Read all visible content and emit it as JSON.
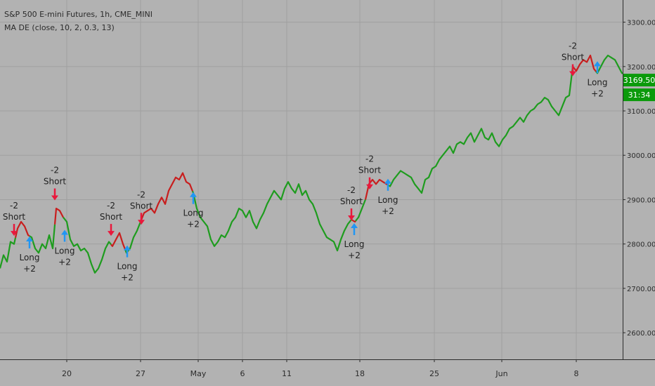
{
  "header": {
    "symbol_title": "S&P 500 E-mini Futures, 1h, CME_MINI",
    "indicator_label": "MA DE (close, 10, 2, 0.3, 13)"
  },
  "price_axis": {
    "ticks": [
      "3300.00",
      "3200.00",
      "3100.00",
      "3000.00",
      "2900.00",
      "2800.00",
      "2700.00",
      "2600.00"
    ],
    "last_price": "3169.50",
    "countdown": "31:34"
  },
  "time_axis": {
    "ticks": [
      "20",
      "27",
      "May",
      "6",
      "11",
      "18",
      "25",
      "Jun",
      "8"
    ]
  },
  "colors": {
    "background": "#b2b2b2",
    "grid": "#a0a0a0",
    "long_trend": "#1e9c1e",
    "short_trend": "#c81e1e",
    "long_arrow": "#2196f3",
    "short_arrow": "#e8183c",
    "label_badge": "#0b9a0b",
    "axis_text": "#2b2b2b"
  },
  "chart_data": {
    "type": "line",
    "ylim": [
      2540,
      3350
    ],
    "y_ticks": [
      3300,
      3200,
      3100,
      3000,
      2900,
      2800,
      2700,
      2600
    ],
    "x_ticks": [
      {
        "label": "20",
        "x": 95
      },
      {
        "label": "27",
        "x": 200
      },
      {
        "label": "May",
        "x": 282
      },
      {
        "label": "6",
        "x": 345
      },
      {
        "label": "11",
        "x": 408
      },
      {
        "label": "18",
        "x": 512
      },
      {
        "label": "25",
        "x": 618
      },
      {
        "label": "Jun",
        "x": 714
      },
      {
        "label": "8",
        "x": 820
      }
    ],
    "xlim": [
      0,
      886
    ],
    "series": [
      {
        "name": "price",
        "points": [
          [
            0,
            2745
          ],
          [
            5,
            2775
          ],
          [
            10,
            2760
          ],
          [
            15,
            2805
          ],
          [
            20,
            2800
          ],
          [
            25,
            2835
          ],
          [
            30,
            2850
          ],
          [
            35,
            2840
          ],
          [
            40,
            2820
          ],
          [
            45,
            2815
          ],
          [
            50,
            2790
          ],
          [
            55,
            2780
          ],
          [
            60,
            2800
          ],
          [
            65,
            2790
          ],
          [
            70,
            2820
          ],
          [
            75,
            2790
          ],
          [
            80,
            2880
          ],
          [
            85,
            2875
          ],
          [
            90,
            2860
          ],
          [
            95,
            2850
          ],
          [
            100,
            2810
          ],
          [
            105,
            2795
          ],
          [
            110,
            2800
          ],
          [
            115,
            2785
          ],
          [
            120,
            2790
          ],
          [
            125,
            2780
          ],
          [
            130,
            2755
          ],
          [
            135,
            2735
          ],
          [
            140,
            2745
          ],
          [
            145,
            2765
          ],
          [
            150,
            2790
          ],
          [
            155,
            2805
          ],
          [
            160,
            2795
          ],
          [
            165,
            2810
          ],
          [
            170,
            2825
          ],
          [
            175,
            2800
          ],
          [
            180,
            2780
          ],
          [
            185,
            2790
          ],
          [
            190,
            2815
          ],
          [
            195,
            2830
          ],
          [
            200,
            2850
          ],
          [
            205,
            2870
          ],
          [
            210,
            2875
          ],
          [
            215,
            2880
          ],
          [
            220,
            2870
          ],
          [
            225,
            2890
          ],
          [
            230,
            2905
          ],
          [
            235,
            2890
          ],
          [
            240,
            2920
          ],
          [
            245,
            2935
          ],
          [
            250,
            2950
          ],
          [
            255,
            2945
          ],
          [
            260,
            2960
          ],
          [
            265,
            2940
          ],
          [
            270,
            2935
          ],
          [
            275,
            2915
          ],
          [
            280,
            2880
          ],
          [
            285,
            2860
          ],
          [
            290,
            2850
          ],
          [
            295,
            2840
          ],
          [
            300,
            2810
          ],
          [
            305,
            2795
          ],
          [
            310,
            2805
          ],
          [
            315,
            2820
          ],
          [
            320,
            2815
          ],
          [
            325,
            2830
          ],
          [
            330,
            2850
          ],
          [
            335,
            2860
          ],
          [
            340,
            2880
          ],
          [
            345,
            2875
          ],
          [
            350,
            2860
          ],
          [
            355,
            2875
          ],
          [
            360,
            2850
          ],
          [
            365,
            2835
          ],
          [
            370,
            2855
          ],
          [
            375,
            2870
          ],
          [
            380,
            2890
          ],
          [
            385,
            2905
          ],
          [
            390,
            2920
          ],
          [
            395,
            2910
          ],
          [
            400,
            2900
          ],
          [
            405,
            2925
          ],
          [
            410,
            2940
          ],
          [
            415,
            2925
          ],
          [
            420,
            2915
          ],
          [
            425,
            2935
          ],
          [
            430,
            2910
          ],
          [
            435,
            2920
          ],
          [
            440,
            2900
          ],
          [
            445,
            2890
          ],
          [
            450,
            2870
          ],
          [
            455,
            2845
          ],
          [
            460,
            2830
          ],
          [
            465,
            2815
          ],
          [
            470,
            2810
          ],
          [
            475,
            2805
          ],
          [
            480,
            2785
          ],
          [
            485,
            2810
          ],
          [
            490,
            2830
          ],
          [
            495,
            2845
          ],
          [
            500,
            2855
          ],
          [
            505,
            2850
          ],
          [
            510,
            2860
          ],
          [
            515,
            2880
          ],
          [
            520,
            2900
          ],
          [
            525,
            2935
          ],
          [
            530,
            2945
          ],
          [
            535,
            2935
          ],
          [
            540,
            2945
          ],
          [
            545,
            2940
          ],
          [
            550,
            2935
          ],
          [
            555,
            2930
          ],
          [
            560,
            2945
          ],
          [
            565,
            2955
          ],
          [
            570,
            2965
          ],
          [
            575,
            2960
          ],
          [
            580,
            2955
          ],
          [
            585,
            2950
          ],
          [
            590,
            2935
          ],
          [
            595,
            2925
          ],
          [
            600,
            2915
          ],
          [
            605,
            2945
          ],
          [
            610,
            2950
          ],
          [
            615,
            2970
          ],
          [
            620,
            2975
          ],
          [
            625,
            2990
          ],
          [
            630,
            3000
          ],
          [
            635,
            3010
          ],
          [
            640,
            3020
          ],
          [
            645,
            3005
          ],
          [
            650,
            3025
          ],
          [
            655,
            3030
          ],
          [
            660,
            3025
          ],
          [
            665,
            3040
          ],
          [
            670,
            3050
          ],
          [
            675,
            3030
          ],
          [
            680,
            3045
          ],
          [
            685,
            3060
          ],
          [
            690,
            3040
          ],
          [
            695,
            3035
          ],
          [
            700,
            3050
          ],
          [
            705,
            3030
          ],
          [
            710,
            3020
          ],
          [
            715,
            3035
          ],
          [
            720,
            3045
          ],
          [
            725,
            3060
          ],
          [
            730,
            3065
          ],
          [
            735,
            3075
          ],
          [
            740,
            3085
          ],
          [
            745,
            3075
          ],
          [
            750,
            3090
          ],
          [
            755,
            3100
          ],
          [
            760,
            3105
          ],
          [
            765,
            3115
          ],
          [
            770,
            3120
          ],
          [
            775,
            3130
          ],
          [
            780,
            3125
          ],
          [
            785,
            3110
          ],
          [
            790,
            3100
          ],
          [
            795,
            3090
          ],
          [
            800,
            3110
          ],
          [
            805,
            3130
          ],
          [
            810,
            3135
          ],
          [
            815,
            3200
          ],
          [
            820,
            3190
          ],
          [
            825,
            3205
          ],
          [
            830,
            3215
          ],
          [
            835,
            3210
          ],
          [
            840,
            3225
          ],
          [
            845,
            3195
          ],
          [
            850,
            3185
          ],
          [
            855,
            3200
          ],
          [
            860,
            3215
          ],
          [
            865,
            3225
          ],
          [
            870,
            3220
          ],
          [
            875,
            3215
          ],
          [
            880,
            3200
          ],
          [
            885,
            3185
          ]
        ]
      }
    ],
    "segments": [
      {
        "from": 0,
        "to": 22,
        "trend": "long"
      },
      {
        "from": 22,
        "to": 42,
        "trend": "short"
      },
      {
        "from": 42,
        "to": 78,
        "trend": "long"
      },
      {
        "from": 78,
        "to": 90,
        "trend": "short"
      },
      {
        "from": 90,
        "to": 158,
        "trend": "long"
      },
      {
        "from": 158,
        "to": 178,
        "trend": "short"
      },
      {
        "from": 178,
        "to": 201,
        "trend": "long"
      },
      {
        "from": 201,
        "to": 274,
        "trend": "short"
      },
      {
        "from": 274,
        "to": 500,
        "trend": "long"
      },
      {
        "from": 500,
        "to": 506,
        "trend": "short"
      },
      {
        "from": 506,
        "to": 520,
        "trend": "long"
      },
      {
        "from": 520,
        "to": 552,
        "trend": "short"
      },
      {
        "from": 552,
        "to": 815,
        "trend": "long"
      },
      {
        "from": 815,
        "to": 848,
        "trend": "short"
      },
      {
        "from": 848,
        "to": 886,
        "trend": "long"
      }
    ],
    "signals": [
      {
        "type": "short",
        "x": 20,
        "price": 2880,
        "line1": "-2",
        "line2": "Short"
      },
      {
        "type": "long",
        "x": 42,
        "price": 2760,
        "line1": "Long",
        "line2": "+2"
      },
      {
        "type": "short",
        "x": 78,
        "price": 2960,
        "line1": "-2",
        "line2": "Short"
      },
      {
        "type": "long",
        "x": 92,
        "price": 2775,
        "line1": "Long",
        "line2": "+2"
      },
      {
        "type": "short",
        "x": 158,
        "price": 2880,
        "line1": "-2",
        "line2": "Short"
      },
      {
        "type": "long",
        "x": 181,
        "price": 2740,
        "line1": "Long",
        "line2": "+2"
      },
      {
        "type": "short",
        "x": 201,
        "price": 2905,
        "line1": "-2",
        "line2": "Short"
      },
      {
        "type": "long",
        "x": 275,
        "price": 2860,
        "line1": "Long",
        "line2": "+2"
      },
      {
        "type": "short",
        "x": 500,
        "price": 2915,
        "line1": "-2",
        "line2": "Short"
      },
      {
        "type": "long",
        "x": 504,
        "price": 2790,
        "line1": "Long",
        "line2": "+2"
      },
      {
        "type": "short",
        "x": 526,
        "price": 2985,
        "line1": "-2",
        "line2": "Short"
      },
      {
        "type": "long",
        "x": 552,
        "price": 2890,
        "line1": "Long",
        "line2": "+2"
      },
      {
        "type": "short",
        "x": 815,
        "price": 3240,
        "line1": "-2",
        "line2": "Short"
      },
      {
        "type": "long",
        "x": 850,
        "price": 3155,
        "line1": "Long",
        "line2": "+2"
      }
    ],
    "grid": true,
    "last_price": 3169.5
  }
}
